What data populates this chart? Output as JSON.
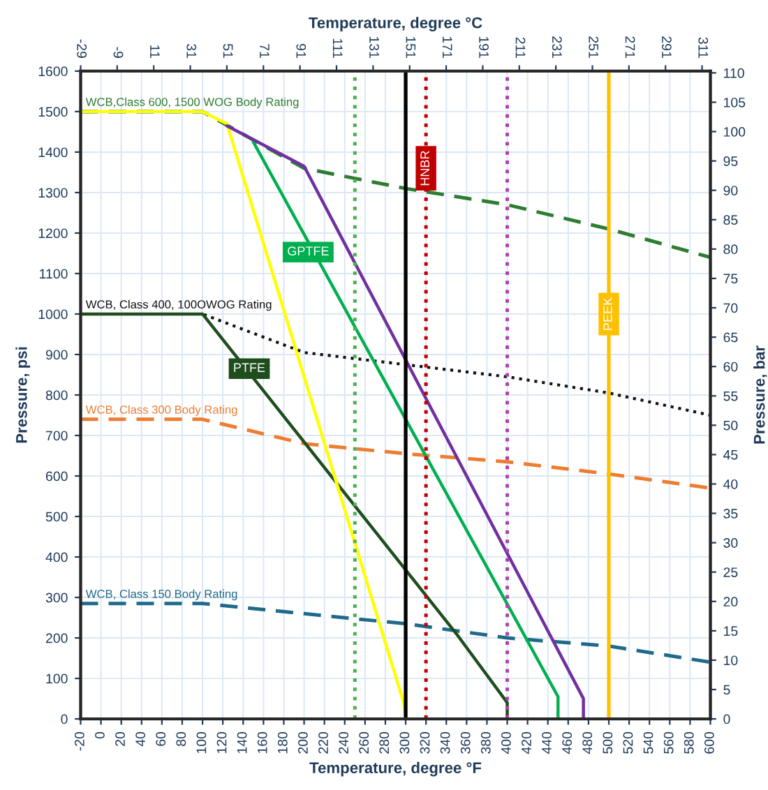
{
  "chart_data": {
    "type": "line",
    "xlabel": "Temperature, degree °F",
    "ylabel": "Pressure, psi",
    "y2label": "Pressure, bar",
    "x2label": "Temperature, degree °C",
    "xlim": [
      -20,
      600
    ],
    "xticks": [
      -20,
      0,
      20,
      40,
      60,
      80,
      100,
      120,
      140,
      160,
      180,
      200,
      220,
      240,
      260,
      280,
      300,
      320,
      340,
      360,
      380,
      400,
      420,
      440,
      460,
      480,
      500,
      520,
      540,
      560,
      580,
      600
    ],
    "ylim": [
      0,
      1600
    ],
    "yticks": [
      0,
      100,
      200,
      300,
      400,
      500,
      600,
      700,
      800,
      900,
      1000,
      1100,
      1200,
      1300,
      1400,
      1500,
      1600
    ],
    "y2lim": [
      0,
      110.3
    ],
    "y2ticks": [
      0,
      5,
      10,
      15,
      20,
      25,
      30,
      35,
      40,
      45,
      50,
      55,
      60,
      65,
      70,
      75,
      80,
      85,
      90,
      95,
      100,
      105,
      110
    ],
    "x2lim": [
      -29,
      315.56
    ],
    "x2ticks": [
      -29,
      -9,
      11,
      31,
      51,
      71,
      91,
      111,
      131,
      151,
      171,
      191,
      211,
      231,
      251,
      271,
      291,
      311
    ],
    "grid": true,
    "legend": false,
    "marker": "none",
    "series": [
      {
        "name": "WCB,Class 600, 1500 WOG Body Rating",
        "color": "#2e7d32",
        "line_style": "dashed",
        "x": [
          -20,
          100,
          200,
          300,
          400,
          500,
          600
        ],
        "values": [
          1500,
          1500,
          1360,
          1310,
          1270,
          1210,
          1140
        ]
      },
      {
        "name": "WCB, Class 400, 100OWOG Rating",
        "color": "#111111",
        "line_style": "dotted",
        "x": [
          -20,
          100,
          200,
          300,
          400,
          500,
          600
        ],
        "values": [
          1000,
          1000,
          905,
          875,
          845,
          805,
          750
        ]
      },
      {
        "name": "WCB, Class 300 Body Rating",
        "color": "#ed7d31",
        "line_style": "dashed",
        "x": [
          -20,
          100,
          200,
          300,
          400,
          500,
          600
        ],
        "values": [
          740,
          740,
          680,
          655,
          635,
          605,
          570
        ]
      },
      {
        "name": "WCB, Class 150 Body Rating",
        "color": "#1f6a8a",
        "line_style": "dashed",
        "x": [
          -20,
          100,
          200,
          300,
          400,
          500,
          600
        ],
        "values": [
          285,
          285,
          260,
          235,
          200,
          180,
          140
        ]
      },
      {
        "name": "PTFE",
        "color": "#1e4d1e",
        "line_style": "solid",
        "x": [
          -20,
          100,
          350,
          400,
          400
        ],
        "values": [
          1000,
          1000,
          210,
          40,
          0
        ]
      },
      {
        "color": "#ffff00",
        "line_style": "solid",
        "x": [
          -20,
          100,
          124,
          298,
          300
        ],
        "values": [
          1500,
          1500,
          1470,
          40,
          0
        ]
      },
      {
        "name": "GPTFE",
        "color": "#00b050",
        "line_style": "solid",
        "x": [
          150,
          450,
          450
        ],
        "values": [
          1425,
          55,
          0
        ]
      },
      {
        "color": "#7030a0",
        "line_style": "solid",
        "x": [
          124,
          200,
          475,
          475
        ],
        "values": [
          1465,
          1365,
          50,
          0
        ]
      }
    ],
    "ref_lines": [
      {
        "axis": "x",
        "value": 250,
        "color": "#4caf50",
        "line_style": "dotted"
      },
      {
        "axis": "x",
        "value": 300,
        "color": "#000000",
        "line_style": "solid"
      },
      {
        "axis": "x",
        "value": 320,
        "color": "#c00000",
        "line_style": "dotted",
        "label": "HNBR"
      },
      {
        "axis": "x",
        "value": 400,
        "color": "#b040b0",
        "line_style": "dotted"
      },
      {
        "axis": "x",
        "value": 500,
        "color": "#ffc000",
        "line_style": "solid",
        "label": "PEEK"
      }
    ]
  }
}
